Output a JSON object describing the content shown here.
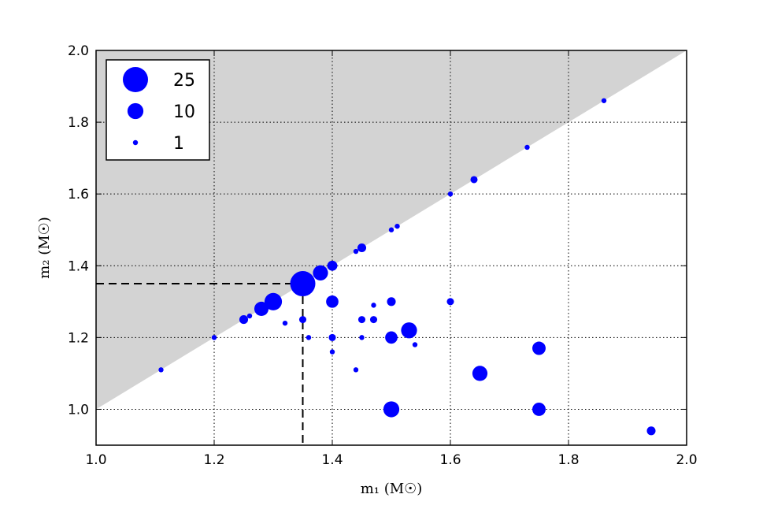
{
  "chart_data": {
    "type": "scatter",
    "xlabel": "m₁ (M☉)",
    "ylabel": "m₂ (M☉)",
    "xlim": [
      1.0,
      2.0
    ],
    "ylim": [
      0.9,
      2.0
    ],
    "xticks": [
      "1.0",
      "1.2",
      "1.4",
      "1.6",
      "1.8",
      "2.0"
    ],
    "yticks": [
      "1.0",
      "1.2",
      "1.4",
      "1.6",
      "1.8",
      "2.0"
    ],
    "grid": true,
    "shaded_region": "m2 > m1",
    "reference_point": [
      1.35,
      1.35
    ],
    "legend": {
      "placement": "top-left",
      "entries": [
        {
          "label": "25",
          "count": 25
        },
        {
          "label": "10",
          "count": 10
        },
        {
          "label": "1",
          "count": 1
        }
      ]
    },
    "points": [
      {
        "x": 1.11,
        "y": 1.11,
        "count": 1
      },
      {
        "x": 1.2,
        "y": 1.2,
        "count": 1
      },
      {
        "x": 1.25,
        "y": 1.25,
        "count": 3
      },
      {
        "x": 1.26,
        "y": 1.26,
        "count": 1
      },
      {
        "x": 1.28,
        "y": 1.28,
        "count": 8
      },
      {
        "x": 1.3,
        "y": 1.3,
        "count": 12
      },
      {
        "x": 1.32,
        "y": 1.24,
        "count": 1
      },
      {
        "x": 1.35,
        "y": 1.35,
        "count": 25
      },
      {
        "x": 1.35,
        "y": 1.25,
        "count": 2
      },
      {
        "x": 1.36,
        "y": 1.2,
        "count": 1
      },
      {
        "x": 1.38,
        "y": 1.38,
        "count": 9
      },
      {
        "x": 1.4,
        "y": 1.4,
        "count": 4
      },
      {
        "x": 1.4,
        "y": 1.3,
        "count": 6
      },
      {
        "x": 1.4,
        "y": 1.2,
        "count": 2
      },
      {
        "x": 1.4,
        "y": 1.16,
        "count": 1
      },
      {
        "x": 1.44,
        "y": 1.44,
        "count": 1
      },
      {
        "x": 1.44,
        "y": 1.11,
        "count": 1
      },
      {
        "x": 1.45,
        "y": 1.45,
        "count": 3
      },
      {
        "x": 1.45,
        "y": 1.25,
        "count": 2
      },
      {
        "x": 1.45,
        "y": 1.2,
        "count": 1
      },
      {
        "x": 1.47,
        "y": 1.29,
        "count": 1
      },
      {
        "x": 1.47,
        "y": 1.25,
        "count": 2
      },
      {
        "x": 1.5,
        "y": 1.5,
        "count": 1
      },
      {
        "x": 1.5,
        "y": 1.3,
        "count": 3
      },
      {
        "x": 1.5,
        "y": 1.2,
        "count": 6
      },
      {
        "x": 1.5,
        "y": 1.0,
        "count": 10
      },
      {
        "x": 1.51,
        "y": 1.51,
        "count": 1
      },
      {
        "x": 1.53,
        "y": 1.22,
        "count": 10
      },
      {
        "x": 1.54,
        "y": 1.18,
        "count": 1
      },
      {
        "x": 1.6,
        "y": 1.6,
        "count": 1
      },
      {
        "x": 1.6,
        "y": 1.3,
        "count": 2
      },
      {
        "x": 1.64,
        "y": 1.64,
        "count": 2
      },
      {
        "x": 1.65,
        "y": 1.1,
        "count": 9
      },
      {
        "x": 1.73,
        "y": 1.73,
        "count": 1
      },
      {
        "x": 1.75,
        "y": 1.17,
        "count": 7
      },
      {
        "x": 1.75,
        "y": 1.0,
        "count": 7
      },
      {
        "x": 1.86,
        "y": 1.86,
        "count": 1
      },
      {
        "x": 1.94,
        "y": 0.94,
        "count": 3
      }
    ],
    "colors": {
      "marker": "#0000ff",
      "shade": "#d3d3d3",
      "grid": "#000000",
      "reference_line": "#000000"
    }
  }
}
